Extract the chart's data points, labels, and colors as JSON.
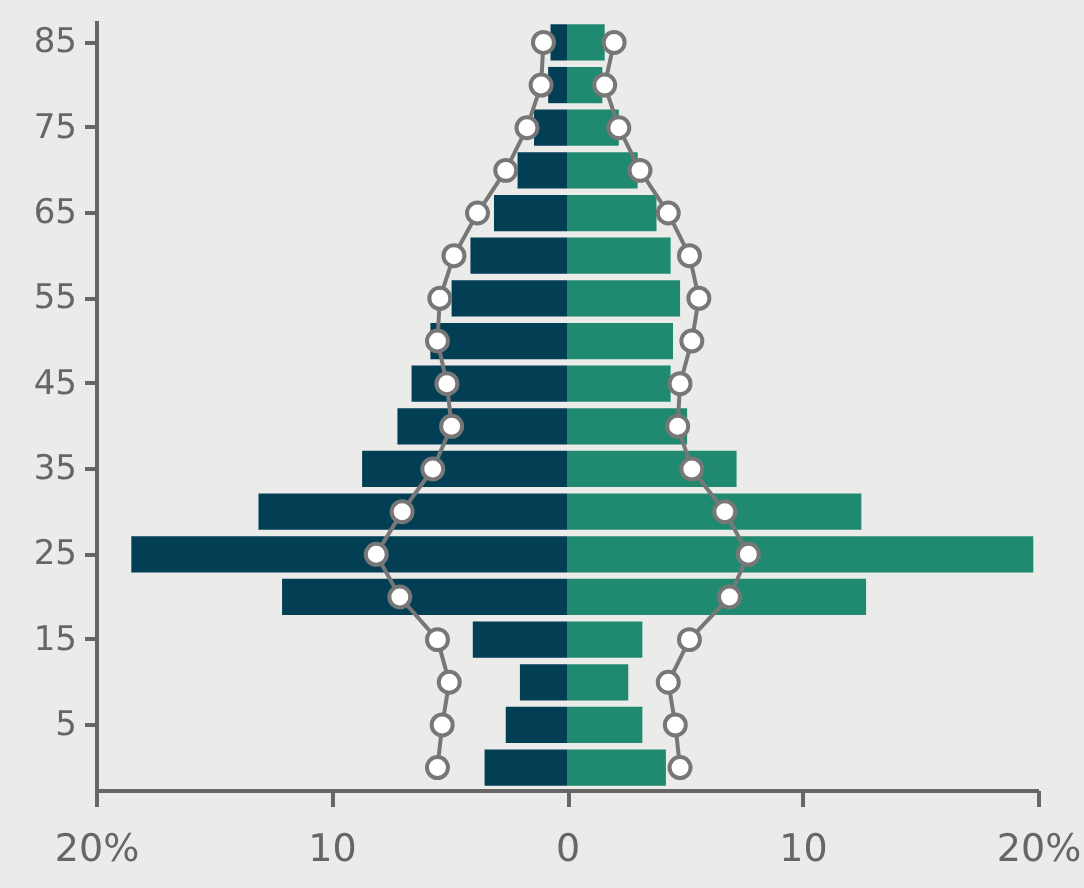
{
  "chart_data": {
    "type": "bar",
    "orientation": "horizontal",
    "categories": [
      "85",
      null,
      "75",
      null,
      "65",
      null,
      "55",
      null,
      "45",
      null,
      "35",
      null,
      "25",
      null,
      "15",
      null,
      "5",
      null
    ],
    "series": [
      {
        "color": "#023f55",
        "values": [
          -0.7,
          -0.8,
          -1.4,
          -2.1,
          -3.1,
          -4.1,
          -4.9,
          -5.8,
          -6.6,
          -7.2,
          -8.7,
          -13.1,
          -18.5,
          -12.1,
          -4.0,
          -2.0,
          -2.6,
          -3.5
        ]
      },
      {
        "color": "#1f8a6f",
        "values": [
          1.6,
          1.5,
          2.2,
          3.0,
          3.8,
          4.4,
          4.8,
          4.5,
          4.4,
          5.1,
          7.2,
          12.5,
          19.8,
          12.7,
          3.2,
          2.6,
          3.2,
          4.2
        ]
      },
      {
        "type": "line",
        "color": "#777777",
        "marker": "circle",
        "values": [
          -1.0,
          -1.1,
          -1.7,
          -2.6,
          -3.8,
          -4.8,
          -5.4,
          -5.5,
          -5.1,
          -4.9,
          -5.7,
          -7.0,
          -8.1,
          -7.1,
          -5.5,
          -5.0,
          -5.3,
          -5.5
        ]
      },
      {
        "type": "line",
        "color": "#777777",
        "marker": "circle",
        "values": [
          2.0,
          1.6,
          2.2,
          3.1,
          4.3,
          5.2,
          5.6,
          5.3,
          4.8,
          4.7,
          5.3,
          6.7,
          7.7,
          6.9,
          5.2,
          4.3,
          4.6,
          4.8
        ]
      }
    ],
    "xlim": [
      -20,
      20
    ],
    "xticks": [
      {
        "value": -20,
        "label": "20%"
      },
      {
        "value": -10,
        "label": "10"
      },
      0,
      10,
      {
        "value": 20,
        "label": "20%"
      }
    ],
    "stacked": true,
    "grid": false
  }
}
